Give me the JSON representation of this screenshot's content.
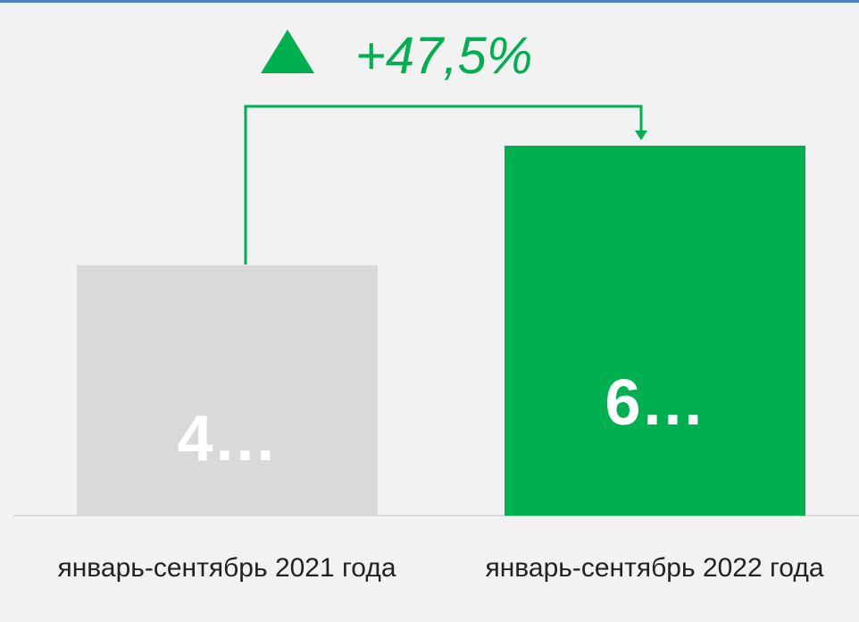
{
  "chart_data": {
    "type": "bar",
    "annotation": "+47,5%",
    "categories": [
      "январь-сентябрь 2021 года",
      "январь-сентябрь 2022 года"
    ],
    "values": [
      4.4,
      6.5
    ],
    "value_labels": [
      "4…",
      "6…"
    ],
    "colors": [
      "#d9d9d9",
      "#00b050"
    ],
    "ylim": [
      0,
      8
    ]
  }
}
